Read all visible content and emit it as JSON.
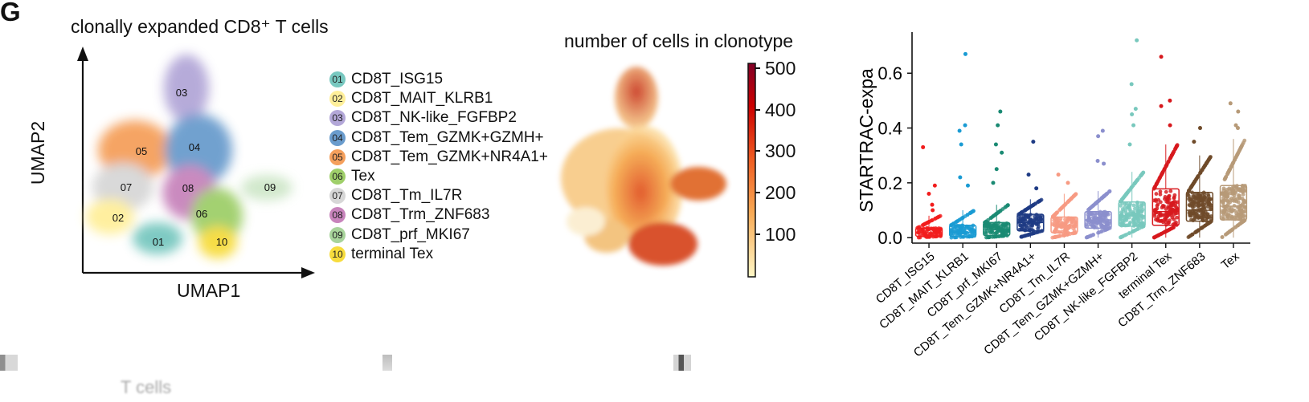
{
  "panel": {
    "letter": "G",
    "umap_title": "clonally expanded CD8⁺ T cells",
    "umap_xlabel": "UMAP1",
    "umap_ylabel": "UMAP2",
    "clonotype_title": "number of cells in clonotype",
    "colorbar": {
      "ticks": [
        "500",
        "400",
        "300",
        "200",
        "100"
      ],
      "values": [
        500,
        400,
        300,
        200,
        100
      ]
    },
    "bottom_ghost_text": "T cells"
  },
  "clusters": [
    {
      "id": "01",
      "label": "CD8T_ISG15",
      "color": "#78c8c0"
    },
    {
      "id": "02",
      "label": "CD8T_MAIT_KLRB1",
      "color": "#ffef9a"
    },
    {
      "id": "03",
      "label": "CD8T_NK-like_FGFBP2",
      "color": "#b3a7d8"
    },
    {
      "id": "04",
      "label": "CD8T_Tem_GZMK+GZMH+",
      "color": "#6a9ccd"
    },
    {
      "id": "05",
      "label": "CD8T_Tem_GZMK+NR4A1+",
      "color": "#f5a05c"
    },
    {
      "id": "06",
      "label": "Tex",
      "color": "#9fcf6a"
    },
    {
      "id": "07",
      "label": "CD8T_Tm_IL7R",
      "color": "#d7d7d7"
    },
    {
      "id": "08",
      "label": "CD8T_Trm_ZNF683",
      "color": "#c884bc"
    },
    {
      "id": "09",
      "label": "CD8T_prf_MKI67",
      "color": "#a8d49b"
    },
    {
      "id": "10",
      "label": "terminal Tex",
      "color": "#f7dc3d"
    }
  ],
  "chart_data": {
    "type": "box",
    "title": "",
    "xlabel": "",
    "ylabel": "STARTRAC-expa",
    "ylim": [
      -0.02,
      0.75
    ],
    "yticks": [
      0.0,
      0.2,
      0.4,
      0.6
    ],
    "ytick_labels": [
      "0.0",
      "0.2",
      "0.4",
      "0.6"
    ],
    "grid": false,
    "categories": [
      "CD8T_ISG15",
      "CD8T_MAIT_KLRB1",
      "CD8T_prf_MKI67",
      "CD8T_Tem_GZMK+NR4A1+",
      "CD8T_Tm_IL7R",
      "CD8T_Tem_GZMK+GZMH+",
      "CD8T_NK-like_FGFBP2",
      "terminal Tex",
      "CD8T_Trm_ZNF683",
      "Tex"
    ],
    "colors": [
      "#f11d1d",
      "#1a9bd3",
      "#1a8a73",
      "#1e3b84",
      "#f79a82",
      "#8b8fcd",
      "#78c8bd",
      "#d7181d",
      "#6f4b2a",
      "#b79a78"
    ],
    "q1": [
      0.005,
      0.005,
      0.008,
      0.025,
      0.018,
      0.035,
      0.042,
      0.045,
      0.06,
      0.065
    ],
    "median": [
      0.018,
      0.02,
      0.03,
      0.055,
      0.045,
      0.065,
      0.08,
      0.095,
      0.1,
      0.115
    ],
    "q3": [
      0.035,
      0.045,
      0.055,
      0.085,
      0.075,
      0.095,
      0.13,
      0.178,
      0.165,
      0.19
    ],
    "whisker_low": [
      0.0,
      0.0,
      0.0,
      0.0,
      0.0,
      0.0,
      0.0,
      0.0,
      0.0,
      0.0
    ],
    "whisker_high": [
      0.08,
      0.1,
      0.12,
      0.14,
      0.16,
      0.17,
      0.24,
      0.34,
      0.3,
      0.36
    ],
    "outliers": [
      [
        0.33,
        0.19,
        0.16,
        0.12,
        0.1
      ],
      [
        0.67,
        0.41,
        0.39,
        0.34,
        0.22,
        0.19
      ],
      [
        0.46,
        0.41,
        0.34,
        0.31,
        0.25,
        0.2
      ],
      [
        0.35,
        0.23,
        0.18
      ],
      [
        0.23,
        0.2
      ],
      [
        0.39,
        0.37,
        0.28,
        0.27
      ],
      [
        0.72,
        0.56,
        0.47,
        0.45,
        0.41,
        0.34
      ],
      [
        0.66,
        0.5,
        0.48,
        0.41
      ],
      [
        0.4,
        0.35
      ],
      [
        0.49,
        0.46,
        0.41,
        0.4
      ]
    ]
  }
}
